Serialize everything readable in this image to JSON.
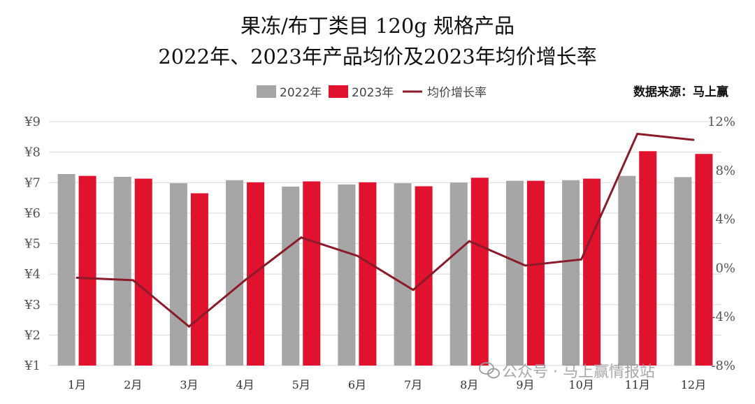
{
  "header": {
    "title_line1": "果冻/布丁类目 120g 规格产品",
    "title_line2": "2022年、2023年产品均价及2023年均价增长率"
  },
  "source": "数据来源：马上赢",
  "watermark": "公众号 · 马上赢情报站",
  "colors": {
    "series_2022": "#a6a6a6",
    "series_2023": "#e0122e",
    "growth_line": "#8b1a2b",
    "grid": "#d9d9d9"
  },
  "chart_data": {
    "type": "bar",
    "categories": [
      "1月",
      "2月",
      "3月",
      "4月",
      "5月",
      "6月",
      "7月",
      "8月",
      "9月",
      "10月",
      "11月",
      "12月"
    ],
    "series": [
      {
        "name": "2022年",
        "type": "bar",
        "axis": "left",
        "values": [
          7.28,
          7.19,
          6.98,
          7.08,
          6.87,
          6.94,
          6.98,
          7.0,
          7.06,
          7.08,
          7.22,
          7.18
        ]
      },
      {
        "name": "2023年",
        "type": "bar",
        "axis": "left",
        "values": [
          7.22,
          7.13,
          6.65,
          7.01,
          7.04,
          7.01,
          6.88,
          7.16,
          7.06,
          7.13,
          8.03,
          7.94
        ]
      },
      {
        "name": "均价增长率",
        "type": "line",
        "axis": "right",
        "values": [
          -0.8,
          -1.0,
          -4.8,
          -1.0,
          2.5,
          1.0,
          -1.8,
          2.2,
          0.2,
          0.7,
          11.0,
          10.5
        ]
      }
    ],
    "y_left": {
      "range": [
        1,
        9
      ],
      "ticks": [
        "¥1",
        "¥2",
        "¥3",
        "¥4",
        "¥5",
        "¥6",
        "¥7",
        "¥8",
        "¥9"
      ],
      "values": [
        1,
        2,
        3,
        4,
        5,
        6,
        7,
        8,
        9
      ]
    },
    "y_right": {
      "range": [
        -8,
        12
      ],
      "ticks": [
        "-8%",
        "-4%",
        "0%",
        "4%",
        "8%",
        "12%"
      ],
      "values": [
        -8,
        -4,
        0,
        4,
        8,
        12
      ]
    },
    "grid": true,
    "legend_position": "top"
  }
}
